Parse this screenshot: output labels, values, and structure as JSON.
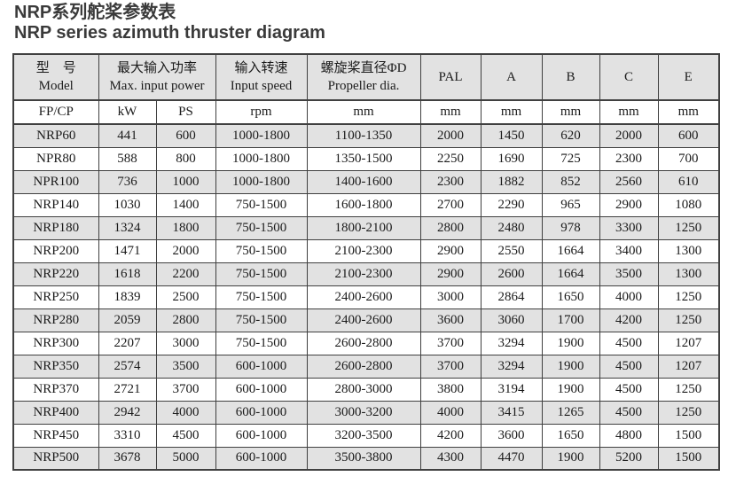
{
  "page": {
    "title_zh": "NRP系列舵桨参数表",
    "title_en": "NRP series azimuth thruster diagram"
  },
  "colors": {
    "stripe_gray": "#e2e2e2",
    "border": "#404040",
    "title_text": "#3a3a3a",
    "cell_text": "#1b1b1b"
  },
  "table": {
    "header": {
      "model_zh": "型　号",
      "model_en": "Model",
      "power_zh": "最大输入功率",
      "power_en": "Max. input power",
      "speed_zh": "输入转速",
      "speed_en": "Input speed",
      "prop_zh": "螺旋桨直径ΦD",
      "prop_en": "Propeller dia.",
      "pal": "PAL",
      "a": "A",
      "b": "B",
      "c": "C",
      "e": "E"
    },
    "units": [
      "FP/CP",
      "kW",
      "PS",
      "rpm",
      "mm",
      "mm",
      "mm",
      "mm",
      "mm",
      "mm"
    ],
    "rows": [
      [
        "NRP60",
        "441",
        "600",
        "1000-1800",
        "1100-1350",
        "2000",
        "1450",
        "620",
        "2000",
        "600"
      ],
      [
        "NPR80",
        "588",
        "800",
        "1000-1800",
        "1350-1500",
        "2250",
        "1690",
        "725",
        "2300",
        "700"
      ],
      [
        "NPR100",
        "736",
        "1000",
        "1000-1800",
        "1400-1600",
        "2300",
        "1882",
        "852",
        "2560",
        "610"
      ],
      [
        "NRP140",
        "1030",
        "1400",
        "750-1500",
        "1600-1800",
        "2700",
        "2290",
        "965",
        "2900",
        "1080"
      ],
      [
        "NRP180",
        "1324",
        "1800",
        "750-1500",
        "1800-2100",
        "2800",
        "2480",
        "978",
        "3300",
        "1250"
      ],
      [
        "NRP200",
        "1471",
        "2000",
        "750-1500",
        "2100-2300",
        "2900",
        "2550",
        "1664",
        "3400",
        "1300"
      ],
      [
        "NRP220",
        "1618",
        "2200",
        "750-1500",
        "2100-2300",
        "2900",
        "2600",
        "1664",
        "3500",
        "1300"
      ],
      [
        "NRP250",
        "1839",
        "2500",
        "750-1500",
        "2400-2600",
        "3000",
        "2864",
        "1650",
        "4000",
        "1250"
      ],
      [
        "NRP280",
        "2059",
        "2800",
        "750-1500",
        "2400-2600",
        "3600",
        "3060",
        "1700",
        "4200",
        "1250"
      ],
      [
        "NRP300",
        "2207",
        "3000",
        "750-1500",
        "2600-2800",
        "3700",
        "3294",
        "1900",
        "4500",
        "1207"
      ],
      [
        "NRP350",
        "2574",
        "3500",
        "600-1000",
        "2600-2800",
        "3700",
        "3294",
        "1900",
        "4500",
        "1207"
      ],
      [
        "NRP370",
        "2721",
        "3700",
        "600-1000",
        "2800-3000",
        "3800",
        "3194",
        "1900",
        "4500",
        "1250"
      ],
      [
        "NRP400",
        "2942",
        "4000",
        "600-1000",
        "3000-3200",
        "4000",
        "3415",
        "1265",
        "4500",
        "1250"
      ],
      [
        "NRP450",
        "3310",
        "4500",
        "600-1000",
        "3200-3500",
        "4200",
        "3600",
        "1650",
        "4800",
        "1500"
      ],
      [
        "NRP500",
        "3678",
        "5000",
        "600-1000",
        "3500-3800",
        "4300",
        "4470",
        "1900",
        "5200",
        "1500"
      ]
    ]
  }
}
